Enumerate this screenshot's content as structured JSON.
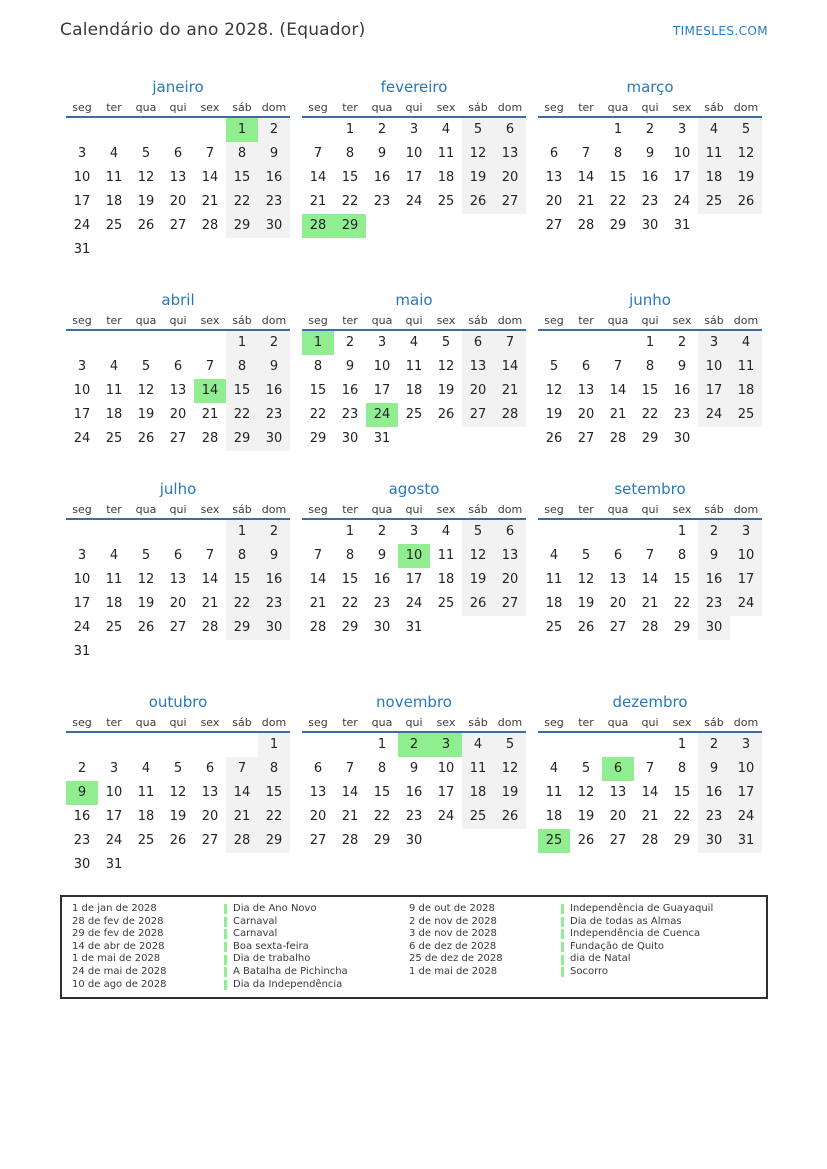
{
  "header": {
    "title": "Calendário do ano 2028. (Equador)",
    "site": "TIMESLES.COM"
  },
  "colors": {
    "month-blue": "#2878be",
    "underline-blue": "#3d6ba4",
    "holiday-green": "#90ee90",
    "weekend-gray": "#f2f2f2",
    "link-blue": "#2479cc"
  },
  "weekdays": [
    "seg",
    "ter",
    "qua",
    "qui",
    "sex",
    "sáb",
    "dom"
  ],
  "months": [
    {
      "name": "janeiro",
      "weeks": [
        [
          null,
          null,
          null,
          null,
          null,
          1,
          2
        ],
        [
          3,
          4,
          5,
          6,
          7,
          8,
          9
        ],
        [
          10,
          11,
          12,
          13,
          14,
          15,
          16
        ],
        [
          17,
          18,
          19,
          20,
          21,
          22,
          23
        ],
        [
          24,
          25,
          26,
          27,
          28,
          29,
          30
        ],
        [
          31,
          null,
          null,
          null,
          null,
          null,
          null
        ]
      ],
      "highlights": [
        1
      ]
    },
    {
      "name": "fevereiro",
      "weeks": [
        [
          null,
          1,
          2,
          3,
          4,
          5,
          6
        ],
        [
          7,
          8,
          9,
          10,
          11,
          12,
          13
        ],
        [
          14,
          15,
          16,
          17,
          18,
          19,
          20
        ],
        [
          21,
          22,
          23,
          24,
          25,
          26,
          27
        ],
        [
          28,
          29,
          null,
          null,
          null,
          null,
          null
        ]
      ],
      "highlights": [
        28,
        29
      ]
    },
    {
      "name": "março",
      "weeks": [
        [
          null,
          null,
          1,
          2,
          3,
          4,
          5
        ],
        [
          6,
          7,
          8,
          9,
          10,
          11,
          12
        ],
        [
          13,
          14,
          15,
          16,
          17,
          18,
          19
        ],
        [
          20,
          21,
          22,
          23,
          24,
          25,
          26
        ],
        [
          27,
          28,
          29,
          30,
          31,
          null,
          null
        ]
      ],
      "highlights": []
    },
    {
      "name": "abril",
      "weeks": [
        [
          null,
          null,
          null,
          null,
          null,
          1,
          2
        ],
        [
          3,
          4,
          5,
          6,
          7,
          8,
          9
        ],
        [
          10,
          11,
          12,
          13,
          14,
          15,
          16
        ],
        [
          17,
          18,
          19,
          20,
          21,
          22,
          23
        ],
        [
          24,
          25,
          26,
          27,
          28,
          29,
          30
        ]
      ],
      "highlights": [
        14
      ]
    },
    {
      "name": "maio",
      "weeks": [
        [
          1,
          2,
          3,
          4,
          5,
          6,
          7
        ],
        [
          8,
          9,
          10,
          11,
          12,
          13,
          14
        ],
        [
          15,
          16,
          17,
          18,
          19,
          20,
          21
        ],
        [
          22,
          23,
          24,
          25,
          26,
          27,
          28
        ],
        [
          29,
          30,
          31,
          null,
          null,
          null,
          null
        ]
      ],
      "highlights": [
        1,
        24
      ]
    },
    {
      "name": "junho",
      "weeks": [
        [
          null,
          null,
          null,
          1,
          2,
          3,
          4
        ],
        [
          5,
          6,
          7,
          8,
          9,
          10,
          11
        ],
        [
          12,
          13,
          14,
          15,
          16,
          17,
          18
        ],
        [
          19,
          20,
          21,
          22,
          23,
          24,
          25
        ],
        [
          26,
          27,
          28,
          29,
          30,
          null,
          null
        ]
      ],
      "highlights": []
    },
    {
      "name": "julho",
      "weeks": [
        [
          null,
          null,
          null,
          null,
          null,
          1,
          2
        ],
        [
          3,
          4,
          5,
          6,
          7,
          8,
          9
        ],
        [
          10,
          11,
          12,
          13,
          14,
          15,
          16
        ],
        [
          17,
          18,
          19,
          20,
          21,
          22,
          23
        ],
        [
          24,
          25,
          26,
          27,
          28,
          29,
          30
        ],
        [
          31,
          null,
          null,
          null,
          null,
          null,
          null
        ]
      ],
      "highlights": []
    },
    {
      "name": "agosto",
      "weeks": [
        [
          null,
          1,
          2,
          3,
          4,
          5,
          6
        ],
        [
          7,
          8,
          9,
          10,
          11,
          12,
          13
        ],
        [
          14,
          15,
          16,
          17,
          18,
          19,
          20
        ],
        [
          21,
          22,
          23,
          24,
          25,
          26,
          27
        ],
        [
          28,
          29,
          30,
          31,
          null,
          null,
          null
        ]
      ],
      "highlights": [
        10
      ]
    },
    {
      "name": "setembro",
      "weeks": [
        [
          null,
          null,
          null,
          null,
          1,
          2,
          3
        ],
        [
          4,
          5,
          6,
          7,
          8,
          9,
          10
        ],
        [
          11,
          12,
          13,
          14,
          15,
          16,
          17
        ],
        [
          18,
          19,
          20,
          21,
          22,
          23,
          24
        ],
        [
          25,
          26,
          27,
          28,
          29,
          30,
          null
        ]
      ],
      "highlights": []
    },
    {
      "name": "outubro",
      "weeks": [
        [
          null,
          null,
          null,
          null,
          null,
          null,
          1
        ],
        [
          2,
          3,
          4,
          5,
          6,
          7,
          8
        ],
        [
          9,
          10,
          11,
          12,
          13,
          14,
          15
        ],
        [
          16,
          17,
          18,
          19,
          20,
          21,
          22
        ],
        [
          23,
          24,
          25,
          26,
          27,
          28,
          29
        ],
        [
          30,
          31,
          null,
          null,
          null,
          null,
          null
        ]
      ],
      "highlights": [
        9
      ]
    },
    {
      "name": "novembro",
      "weeks": [
        [
          null,
          null,
          1,
          2,
          3,
          4,
          5
        ],
        [
          6,
          7,
          8,
          9,
          10,
          11,
          12
        ],
        [
          13,
          14,
          15,
          16,
          17,
          18,
          19
        ],
        [
          20,
          21,
          22,
          23,
          24,
          25,
          26
        ],
        [
          27,
          28,
          29,
          30,
          null,
          null,
          null
        ]
      ],
      "highlights": [
        2,
        3
      ]
    },
    {
      "name": "dezembro",
      "weeks": [
        [
          null,
          null,
          null,
          null,
          1,
          2,
          3
        ],
        [
          4,
          5,
          6,
          7,
          8,
          9,
          10
        ],
        [
          11,
          12,
          13,
          14,
          15,
          16,
          17
        ],
        [
          18,
          19,
          20,
          21,
          22,
          23,
          24
        ],
        [
          25,
          26,
          27,
          28,
          29,
          30,
          31
        ]
      ],
      "highlights": [
        6,
        25
      ]
    }
  ],
  "legend": {
    "columns": [
      [
        {
          "date": "1 de jan de 2028",
          "name": "Dia de Ano Novo"
        },
        {
          "date": "28 de fev de 2028",
          "name": "Carnaval"
        },
        {
          "date": "29 de fev de 2028",
          "name": "Carnaval"
        },
        {
          "date": "14 de abr de 2028",
          "name": "Boa sexta-feira"
        },
        {
          "date": "1 de mai de 2028",
          "name": "Dia de trabalho"
        },
        {
          "date": "24 de mai de 2028",
          "name": "A Batalha de Pichincha"
        },
        {
          "date": "10 de ago de 2028",
          "name": "Dia da Independência"
        }
      ],
      [
        {
          "date": "9 de out de 2028",
          "name": "Independência de Guayaquil"
        },
        {
          "date": "2 de nov de 2028",
          "name": "Dia de todas as Almas"
        },
        {
          "date": "3 de nov de 2028",
          "name": "Independência de Cuenca"
        },
        {
          "date": "6 de dez de 2028",
          "name": "Fundação de Quito"
        },
        {
          "date": "25 de dez de 2028",
          "name": "dia de Natal"
        },
        {
          "date": "1 de mai de 2028",
          "name": "Socorro"
        }
      ]
    ]
  }
}
